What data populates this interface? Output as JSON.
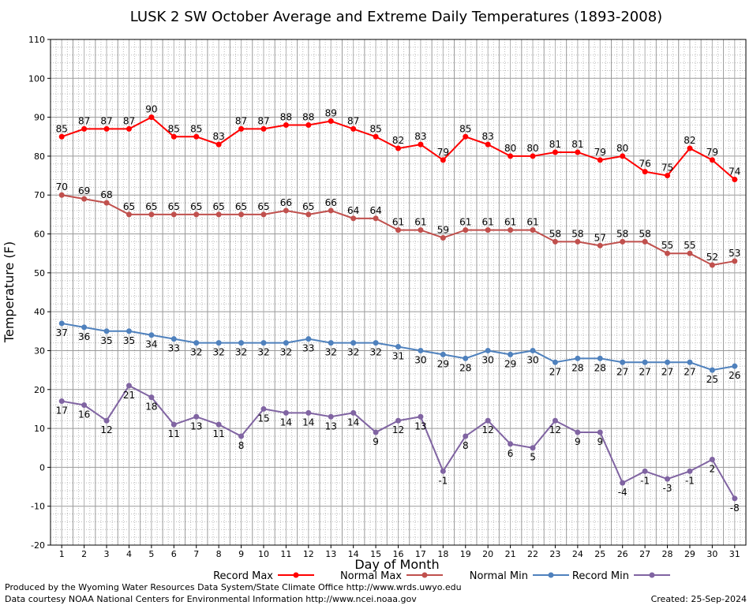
{
  "chart_data": {
    "type": "line",
    "title": "LUSK 2 SW October Average and Extreme Daily Temperatures (1893-2008)",
    "xlabel": "Day of Month",
    "ylabel": "Temperature (F)",
    "x": [
      1,
      2,
      3,
      4,
      5,
      6,
      7,
      8,
      9,
      10,
      11,
      12,
      13,
      14,
      15,
      16,
      17,
      18,
      19,
      20,
      21,
      22,
      23,
      24,
      25,
      26,
      27,
      28,
      29,
      30,
      31
    ],
    "ylim": [
      -20,
      110
    ],
    "yticks": [
      -20,
      -10,
      0,
      10,
      20,
      30,
      40,
      50,
      60,
      70,
      80,
      90,
      100,
      110
    ],
    "grid": true,
    "legend_position": "bottom",
    "series": [
      {
        "name": "Record Max",
        "color": "#ff0000",
        "label_position": "above",
        "values": [
          85,
          87,
          87,
          87,
          90,
          85,
          85,
          83,
          87,
          87,
          88,
          88,
          89,
          87,
          85,
          82,
          83,
          79,
          85,
          83,
          80,
          80,
          81,
          81,
          79,
          80,
          76,
          75,
          82,
          79,
          74
        ]
      },
      {
        "name": "Normal Max",
        "color": "#c0504d",
        "label_position": "above",
        "values": [
          70,
          69,
          68,
          65,
          65,
          65,
          65,
          65,
          65,
          65,
          66,
          65,
          66,
          64,
          64,
          61,
          61,
          59,
          61,
          61,
          61,
          61,
          58,
          58,
          57,
          58,
          58,
          55,
          55,
          52,
          53
        ]
      },
      {
        "name": "Normal Min",
        "color": "#4f81bd",
        "label_position": "below",
        "values": [
          37,
          36,
          35,
          35,
          34,
          33,
          32,
          32,
          32,
          32,
          32,
          33,
          32,
          32,
          32,
          31,
          30,
          29,
          28,
          30,
          29,
          30,
          27,
          28,
          28,
          27,
          27,
          27,
          27,
          25,
          26
        ]
      },
      {
        "name": "Record Min",
        "color": "#8064a2",
        "label_position": "below",
        "values": [
          17,
          16,
          12,
          21,
          18,
          11,
          13,
          11,
          8,
          15,
          14,
          14,
          13,
          14,
          9,
          12,
          13,
          -1,
          8,
          12,
          6,
          5,
          12,
          9,
          9,
          -4,
          -1,
          -3,
          -1,
          2,
          -8
        ]
      }
    ]
  },
  "footer": {
    "produced_by": "Produced by the Wyoming Water Resources Data System/State Climate Office http://www.wrds.uwyo.edu",
    "courtesy": "Data courtesy NOAA National Centers for Environmental Information http://www.ncei.noaa.gov",
    "created": "Created: 25-Sep-2024"
  }
}
